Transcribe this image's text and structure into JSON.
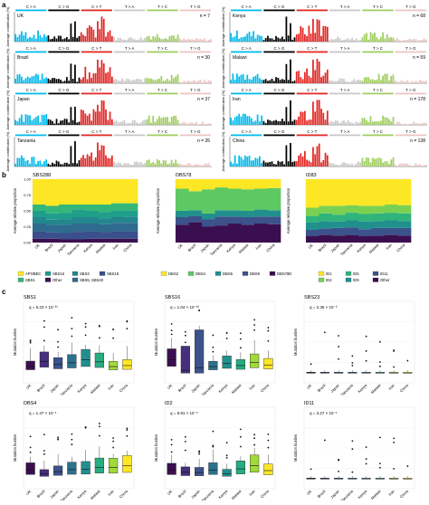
{
  "panel_labels": {
    "a": "a",
    "b": "b",
    "c": "c"
  },
  "sig_headers": [
    "C > A",
    "C > G",
    "C > T",
    "T > A",
    "T > C",
    "T > G"
  ],
  "sig_colors": [
    "#03bcee",
    "#010101",
    "#e32926",
    "#cac9c9",
    "#a1ce63",
    "#ebc6c4"
  ],
  "ylabel_sig": "Average contribution (%)",
  "panel_a": {
    "left": [
      {
        "country": "UK",
        "n": "n = 7"
      },
      {
        "country": "Brazil",
        "n": "n = 30"
      },
      {
        "country": "Japan",
        "n": "n = 37"
      },
      {
        "country": "Tanzania",
        "n": "n = 35"
      }
    ],
    "right": [
      {
        "country": "Kenya",
        "n": "n = 68"
      },
      {
        "country": "Malawi",
        "n": "n = 59"
      },
      {
        "country": "Iran",
        "n": "n = 178"
      },
      {
        "country": "China",
        "n": "n = 138"
      }
    ]
  },
  "panel_b": {
    "ylabel": "Average relative proportion",
    "yticks": [
      "0.00",
      "0.25",
      "0.50",
      "0.75",
      "1.00"
    ],
    "countries": [
      "UK",
      "Brazil",
      "Japan",
      "Tanzania",
      "Kenya",
      "Malawi",
      "Iran",
      "China"
    ],
    "charts": [
      {
        "title": "SBS288",
        "legend": [
          "APOBEC",
          "SBS1",
          "SBS16",
          "Other",
          "SBS3",
          "SBS5, SBS40",
          "SBS18"
        ]
      },
      {
        "title": "DBS78",
        "legend": [
          "DBS2",
          "DBS4",
          "DBS6",
          "DBS9",
          "DBS78D"
        ]
      },
      {
        "title": "ID83",
        "legend": [
          "ID1",
          "ID2",
          "ID5",
          "ID9",
          "ID11",
          "Other"
        ]
      }
    ]
  },
  "panel_c": {
    "ylabel": "Mutation burden",
    "countries": [
      "UK",
      "Brazil",
      "Japan",
      "Tanzania",
      "Kenya",
      "Malawi",
      "Iran",
      "China"
    ],
    "plots": [
      {
        "title": "SBS1",
        "q": "q = 5.23 × 10⁻²⁷"
      },
      {
        "title": "SBS16",
        "q": "q = 1.04 × 10⁻¹⁰"
      },
      {
        "title": "SBS23",
        "q": "q = 2.36 × 10⁻²"
      },
      {
        "title": "DBS4",
        "q": "q = 1.47 × 10⁻¹"
      },
      {
        "title": "ID2",
        "q": "q = 9.91 × 10⁻⁵"
      },
      {
        "title": "ID11",
        "q": "q = 3.27 × 10⁻¹"
      }
    ],
    "box_colors": [
      "#3b0f4f",
      "#462f7c",
      "#3b528b",
      "#2c718e",
      "#21908d",
      "#27ad81",
      "#9fda3a",
      "#fde725"
    ]
  },
  "chart_data": [
    {
      "type": "bar",
      "title": "SBS288",
      "categories": [
        "UK",
        "Brazil",
        "Japan",
        "Tanzania",
        "Kenya",
        "Malawi",
        "Iran",
        "China"
      ],
      "ylim": [
        0,
        1
      ],
      "stacked": true,
      "series": [
        {
          "name": "Other",
          "values": [
            0.06,
            0.06,
            0.05,
            0.05,
            0.06,
            0.06,
            0.06,
            0.06
          ],
          "color": "#3b0f4f"
        },
        {
          "name": "SBS18",
          "values": [
            0.12,
            0.1,
            0.1,
            0.12,
            0.12,
            0.11,
            0.12,
            0.12
          ],
          "color": "#3a4f8c"
        },
        {
          "name": "SBS5, SBS40",
          "values": [
            0.12,
            0.12,
            0.13,
            0.13,
            0.12,
            0.12,
            0.13,
            0.13
          ],
          "color": "#2e6b8e"
        },
        {
          "name": "SBS3",
          "values": [
            0.1,
            0.08,
            0.09,
            0.1,
            0.1,
            0.09,
            0.09,
            0.1
          ],
          "color": "#23868d"
        },
        {
          "name": "SBS16",
          "values": [
            0.1,
            0.1,
            0.1,
            0.12,
            0.1,
            0.1,
            0.1,
            0.1
          ],
          "color": "#1f9e89"
        },
        {
          "name": "SBS1",
          "values": [
            0.1,
            0.12,
            0.13,
            0.08,
            0.1,
            0.12,
            0.12,
            0.11
          ],
          "color": "#35b779"
        },
        {
          "name": "APOBEC",
          "values": [
            0.4,
            0.42,
            0.4,
            0.4,
            0.4,
            0.4,
            0.38,
            0.38
          ],
          "color": "#fde725"
        }
      ]
    },
    {
      "type": "bar",
      "title": "DBS78",
      "categories": [
        "UK",
        "Brazil",
        "Japan",
        "Tanzania",
        "Kenya",
        "Malawi",
        "Iran",
        "China"
      ],
      "ylim": [
        0,
        1
      ],
      "stacked": true,
      "series": [
        {
          "name": "DBS78D",
          "values": [
            0.28,
            0.32,
            0.25,
            0.27,
            0.3,
            0.28,
            0.3,
            0.29
          ],
          "color": "#3b0f4f"
        },
        {
          "name": "DBS9",
          "values": [
            0.12,
            0.1,
            0.12,
            0.14,
            0.11,
            0.12,
            0.11,
            0.12
          ],
          "color": "#3b528b"
        },
        {
          "name": "DBS6",
          "values": [
            0.1,
            0.09,
            0.09,
            0.1,
            0.1,
            0.1,
            0.11,
            0.1
          ],
          "color": "#21908d"
        },
        {
          "name": "DBS4",
          "values": [
            0.35,
            0.3,
            0.38,
            0.36,
            0.34,
            0.34,
            0.33,
            0.35
          ],
          "color": "#5ec962"
        },
        {
          "name": "DBS2",
          "values": [
            0.15,
            0.19,
            0.16,
            0.13,
            0.15,
            0.16,
            0.15,
            0.14
          ],
          "color": "#fde725"
        }
      ]
    },
    {
      "type": "bar",
      "title": "ID83",
      "categories": [
        "UK",
        "Brazil",
        "Japan",
        "Tanzania",
        "Kenya",
        "Malawi",
        "Iran",
        "China"
      ],
      "ylim": [
        0,
        1
      ],
      "stacked": true,
      "series": [
        {
          "name": "Other",
          "values": [
            0.1,
            0.12,
            0.11,
            0.12,
            0.1,
            0.11,
            0.12,
            0.11
          ],
          "color": "#3b0f4f"
        },
        {
          "name": "ID11",
          "values": [
            0.1,
            0.1,
            0.12,
            0.12,
            0.11,
            0.12,
            0.11,
            0.12
          ],
          "color": "#3b528b"
        },
        {
          "name": "ID9",
          "values": [
            0.12,
            0.12,
            0.1,
            0.11,
            0.12,
            0.11,
            0.12,
            0.11
          ],
          "color": "#21908d"
        },
        {
          "name": "ID5",
          "values": [
            0.1,
            0.12,
            0.11,
            0.12,
            0.12,
            0.12,
            0.12,
            0.12
          ],
          "color": "#2fb47c"
        },
        {
          "name": "ID2",
          "values": [
            0.13,
            0.12,
            0.14,
            0.12,
            0.13,
            0.12,
            0.13,
            0.13
          ],
          "color": "#7ad151"
        },
        {
          "name": "ID1",
          "values": [
            0.45,
            0.42,
            0.42,
            0.41,
            0.42,
            0.42,
            0.4,
            0.41
          ],
          "color": "#fde725"
        }
      ]
    }
  ]
}
